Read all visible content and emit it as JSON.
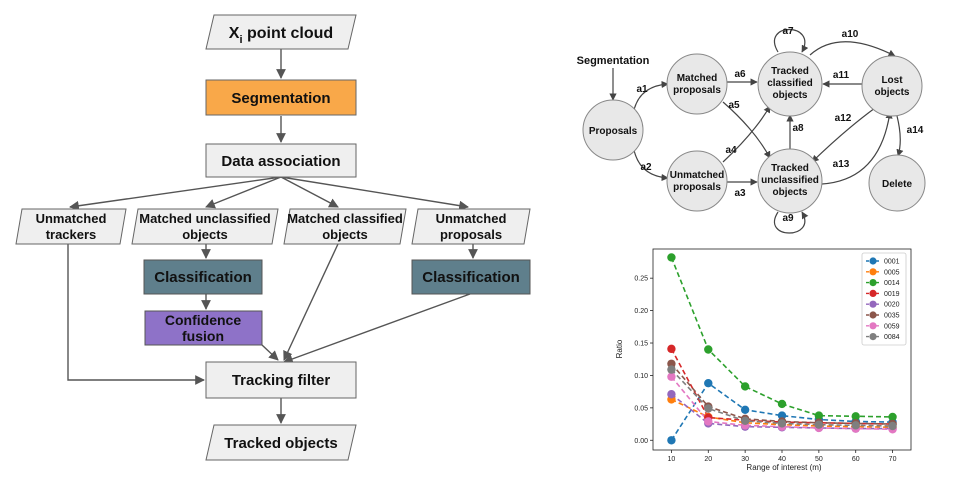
{
  "flowchart": {
    "input_main": "X",
    "input_sub": "i",
    "input_rest": " point cloud",
    "segmentation": "Segmentation",
    "data_association": "Data association",
    "unmatched_trackers": [
      "Unmatched",
      "trackers"
    ],
    "matched_unclassified": [
      "Matched unclassified",
      "objects"
    ],
    "matched_classified": [
      "Matched classified",
      "objects"
    ],
    "unmatched_proposals": [
      "Unmatched",
      "proposals"
    ],
    "classification_left": "Classification",
    "classification_right": "Classification",
    "confidence_fusion": [
      "Confidence",
      "fusion"
    ],
    "tracking_filter": "Tracking filter",
    "tracked_objects": "Tracked objects",
    "colors": {
      "segmentation": "#f9a849",
      "classification": "#5f7f8c",
      "fusion": "#8e72c8",
      "box": "#efefef"
    }
  },
  "state_diagram": {
    "segmentation": "Segmentation",
    "proposals": "Proposals",
    "matched_proposals": [
      "Matched",
      "proposals"
    ],
    "unmatched_proposals": [
      "Unmatched",
      "proposals"
    ],
    "tracked_classified": [
      "Tracked",
      "classified",
      "objects"
    ],
    "tracked_unclassified": [
      "Tracked",
      "unclassified",
      "objects"
    ],
    "lost_objects": [
      "Lost",
      "objects"
    ],
    "delete": "Delete",
    "edges": [
      "a1",
      "a2",
      "a3",
      "a4",
      "a5",
      "a6",
      "a7",
      "a8",
      "a9",
      "a10",
      "a11",
      "a12",
      "a13",
      "a14"
    ]
  },
  "chart_data": {
    "type": "line",
    "xlabel": "Range of interest (m)",
    "ylabel": "Ratio",
    "x": [
      10,
      20,
      30,
      40,
      50,
      60,
      70
    ],
    "xlim": [
      5,
      75
    ],
    "ylim": [
      -0.015,
      0.295
    ],
    "yticks": [
      0.0,
      0.05,
      0.1,
      0.15,
      0.2,
      0.25
    ],
    "ytick_labels": [
      "0.00",
      "0.05",
      "0.10",
      "0.15",
      "0.20",
      "0.25"
    ],
    "xtick_labels": [
      "10",
      "20",
      "30",
      "40",
      "50",
      "60",
      "70"
    ],
    "legend_position": "top-right",
    "series": [
      {
        "name": "0001",
        "color": "#1f77b4",
        "values": [
          0.0,
          0.088,
          0.047,
          0.038,
          0.032,
          0.029,
          0.028
        ]
      },
      {
        "name": "0005",
        "color": "#ff7f0e",
        "values": [
          0.063,
          0.036,
          0.027,
          0.024,
          0.022,
          0.021,
          0.02
        ]
      },
      {
        "name": "0014",
        "color": "#2ca02c",
        "values": [
          0.282,
          0.14,
          0.083,
          0.056,
          0.038,
          0.037,
          0.036
        ]
      },
      {
        "name": "0019",
        "color": "#d62728",
        "values": [
          0.141,
          0.035,
          0.031,
          0.028,
          0.027,
          0.026,
          0.025
        ]
      },
      {
        "name": "0020",
        "color": "#9467bd",
        "values": [
          0.071,
          0.026,
          0.021,
          0.02,
          0.019,
          0.018,
          0.018
        ]
      },
      {
        "name": "0035",
        "color": "#8c564b",
        "values": [
          0.118,
          0.052,
          0.033,
          0.029,
          0.027,
          0.026,
          0.025
        ]
      },
      {
        "name": "0059",
        "color": "#e377c2",
        "values": [
          0.098,
          0.029,
          0.023,
          0.021,
          0.019,
          0.018,
          0.017
        ]
      },
      {
        "name": "0084",
        "color": "#7f7f7f",
        "values": [
          0.109,
          0.049,
          0.03,
          0.026,
          0.024,
          0.023,
          0.022
        ]
      }
    ]
  }
}
